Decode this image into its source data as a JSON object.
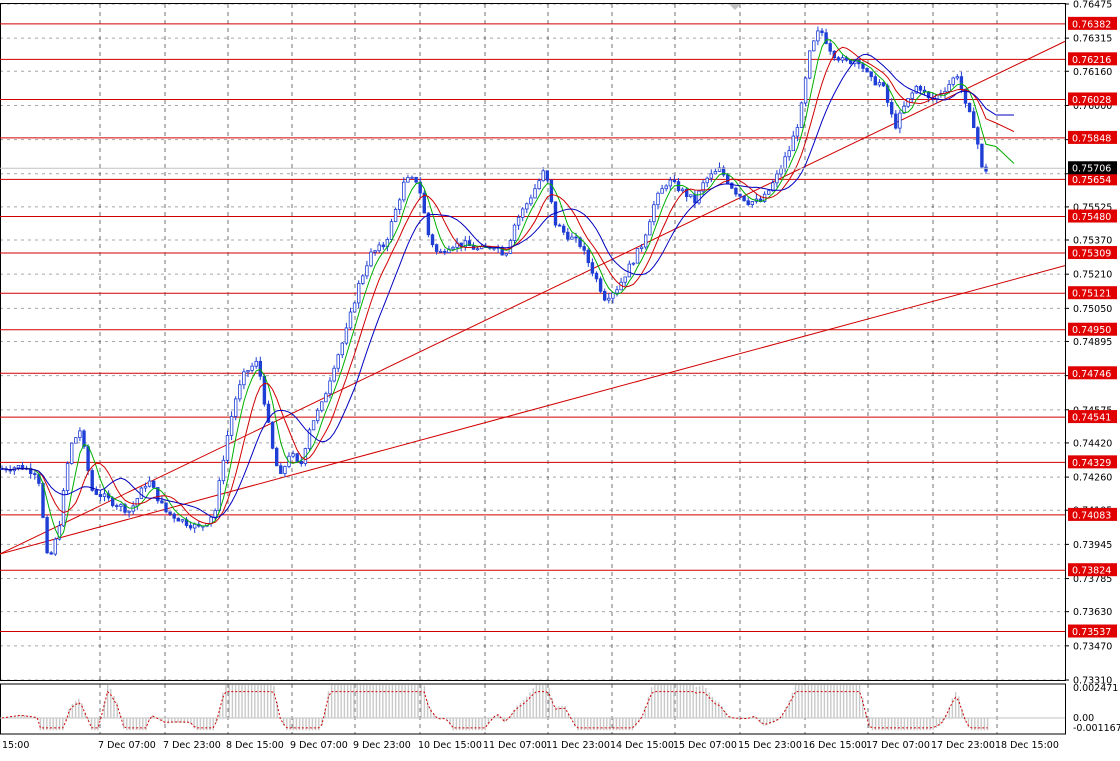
{
  "chart_data": {
    "type": "candlestick",
    "instrument_note": "",
    "price_axis": {
      "ticks": [
        "0.76475",
        "0.76315",
        "0.76160",
        "0.76000",
        "0.75840",
        "0.75680",
        "0.75525",
        "0.75370",
        "0.75210",
        "0.75050",
        "0.74895",
        "0.74735",
        "0.74575",
        "0.74420",
        "0.74260",
        "0.74105",
        "0.73945",
        "0.73785",
        "0.73630",
        "0.73470",
        "0.73310"
      ],
      "range": [
        0.7331,
        0.76475
      ]
    },
    "time_axis": {
      "labels": [
        "15:00",
        "7 Dec 07:00",
        "7 Dec 23:00",
        "8 Dec 15:00",
        "9 Dec 07:00",
        "9 Dec 23:00",
        "10 Dec 15:00",
        "11 Dec 07:00",
        "11 Dec 23:00",
        "14 Dec 15:00",
        "15 Dec 07:00",
        "15 Dec 23:00",
        "16 Dec 15:00",
        "17 Dec 07:00",
        "17 Dec 23:00",
        "18 Dec 15:00"
      ]
    },
    "current_price": "0.75706",
    "horizontal_levels": [
      "0.76382",
      "0.76216",
      "0.76028",
      "0.75848",
      "0.75654",
      "0.75480",
      "0.75309",
      "0.75121",
      "0.74950",
      "0.74746",
      "0.74541",
      "0.74329",
      "0.74083",
      "0.73824",
      "0.73537"
    ],
    "trendlines": [
      {
        "from": [
          0,
          0.739
        ],
        "to": [
          1065,
          0.763
        ]
      },
      {
        "from": [
          0,
          0.739
        ],
        "to": [
          1065,
          0.7525
        ]
      }
    ],
    "series": [
      {
        "name": "",
        "kind": "ma",
        "color": "#00b000"
      },
      {
        "name": "",
        "kind": "ma",
        "color": "#d00000"
      },
      {
        "name": "",
        "kind": "ma",
        "color": "#0000c0"
      }
    ],
    "price_path": [
      [
        2,
        0.743
      ],
      [
        20,
        0.7431
      ],
      [
        38,
        0.7428
      ],
      [
        48,
        0.7385
      ],
      [
        58,
        0.74
      ],
      [
        70,
        0.744
      ],
      [
        80,
        0.7448
      ],
      [
        92,
        0.742
      ],
      [
        110,
        0.7415
      ],
      [
        130,
        0.741
      ],
      [
        148,
        0.7425
      ],
      [
        165,
        0.741
      ],
      [
        185,
        0.7405
      ],
      [
        200,
        0.7402
      ],
      [
        215,
        0.741
      ],
      [
        225,
        0.744
      ],
      [
        235,
        0.7462
      ],
      [
        245,
        0.7475
      ],
      [
        258,
        0.748
      ],
      [
        265,
        0.746
      ],
      [
        272,
        0.744
      ],
      [
        280,
        0.7425
      ],
      [
        290,
        0.7438
      ],
      [
        300,
        0.743
      ],
      [
        310,
        0.745
      ],
      [
        322,
        0.746
      ],
      [
        335,
        0.748
      ],
      [
        345,
        0.7492
      ],
      [
        358,
        0.7515
      ],
      [
        370,
        0.753
      ],
      [
        385,
        0.7535
      ],
      [
        395,
        0.755
      ],
      [
        405,
        0.7565
      ],
      [
        418,
        0.7565
      ],
      [
        428,
        0.754
      ],
      [
        438,
        0.753
      ],
      [
        450,
        0.7535
      ],
      [
        465,
        0.7535
      ],
      [
        480,
        0.7532
      ],
      [
        495,
        0.7535
      ],
      [
        505,
        0.753
      ],
      [
        515,
        0.7545
      ],
      [
        528,
        0.7555
      ],
      [
        545,
        0.757
      ],
      [
        555,
        0.7545
      ],
      [
        565,
        0.754
      ],
      [
        580,
        0.7535
      ],
      [
        595,
        0.752
      ],
      [
        605,
        0.751
      ],
      [
        618,
        0.7515
      ],
      [
        630,
        0.7525
      ],
      [
        642,
        0.7535
      ],
      [
        655,
        0.7555
      ],
      [
        668,
        0.7565
      ],
      [
        682,
        0.756
      ],
      [
        695,
        0.7555
      ],
      [
        705,
        0.7565
      ],
      [
        720,
        0.757
      ],
      [
        735,
        0.756
      ],
      [
        748,
        0.7555
      ],
      [
        762,
        0.7555
      ],
      [
        775,
        0.7565
      ],
      [
        790,
        0.758
      ],
      [
        800,
        0.7595
      ],
      [
        810,
        0.7625
      ],
      [
        820,
        0.7636
      ],
      [
        832,
        0.7625
      ],
      [
        845,
        0.762
      ],
      [
        858,
        0.7622
      ],
      [
        870,
        0.7612
      ],
      [
        882,
        0.761
      ],
      [
        895,
        0.759
      ],
      [
        905,
        0.76
      ],
      [
        918,
        0.761
      ],
      [
        930,
        0.7602
      ],
      [
        945,
        0.7608
      ],
      [
        958,
        0.7615
      ],
      [
        965,
        0.76
      ],
      [
        975,
        0.759
      ],
      [
        982,
        0.757
      ],
      [
        988,
        0.757
      ]
    ],
    "oscillator": {
      "ticks": [
        "0.002471",
        "0.00",
        "-0.001167"
      ],
      "range": [
        -0.001167,
        0.002471
      ]
    }
  }
}
